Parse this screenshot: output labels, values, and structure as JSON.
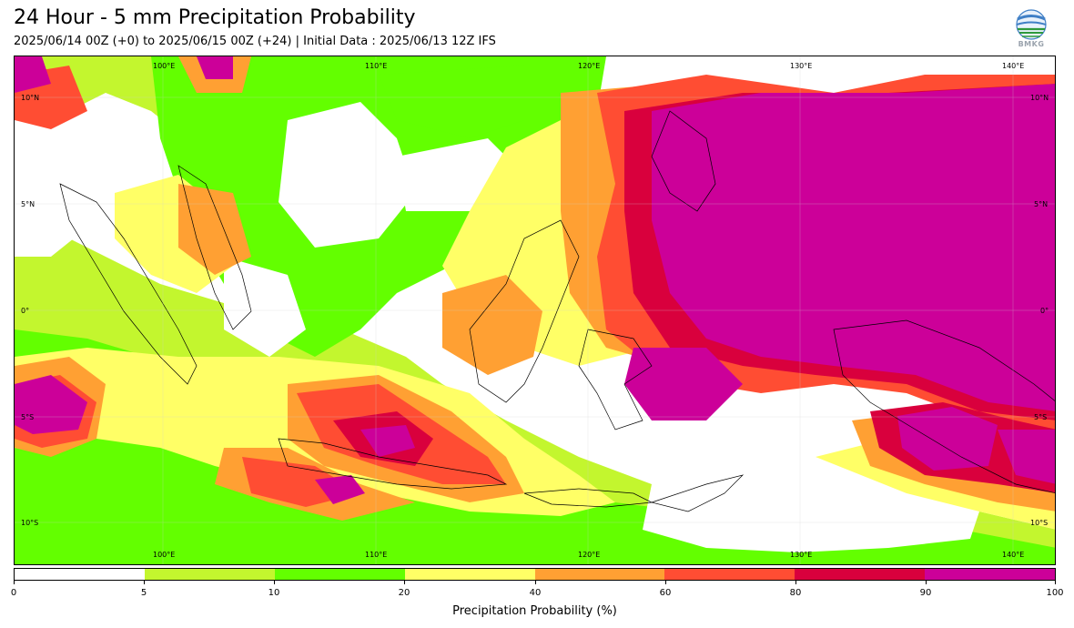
{
  "header": {
    "title": "24 Hour - 5 mm Precipitation Probability",
    "subtitle": "2025/06/14 00Z (+0) to 2025/06/15 00Z (+24) | Initial Data : 2025/06/13 12Z IFS",
    "logo_text": "BMKG"
  },
  "map": {
    "lon_labels_top": [
      "100°E",
      "110°E",
      "120°E",
      "130°E",
      "140°E"
    ],
    "lon_labels_bottom": [
      "100°E",
      "110°E",
      "120°E",
      "130°E",
      "140°E"
    ],
    "lat_labels_left": [
      "10°N",
      "5°N",
      "0°",
      "5°S",
      "10°S"
    ],
    "lat_labels_right": [
      "10°N",
      "5°N",
      "0°",
      "5°S",
      "10°S"
    ]
  },
  "legend": {
    "title": "Precipitation Probability (%)",
    "ticks": [
      "0",
      "5",
      "10",
      "20",
      "40",
      "60",
      "80",
      "90",
      "100"
    ],
    "colors": [
      "#ffffff",
      "#c3f62e",
      "#63ff00",
      "#ffff66",
      "#ffa033",
      "#ff4d33",
      "#d9003d",
      "#cc0099"
    ]
  },
  "colors": {
    "p5": "#c3f62e",
    "p10": "#63ff00",
    "p20": "#ffff66",
    "p40": "#ffa033",
    "p60": "#ff4d33",
    "p80": "#d9003d",
    "p90": "#cc0099"
  }
}
